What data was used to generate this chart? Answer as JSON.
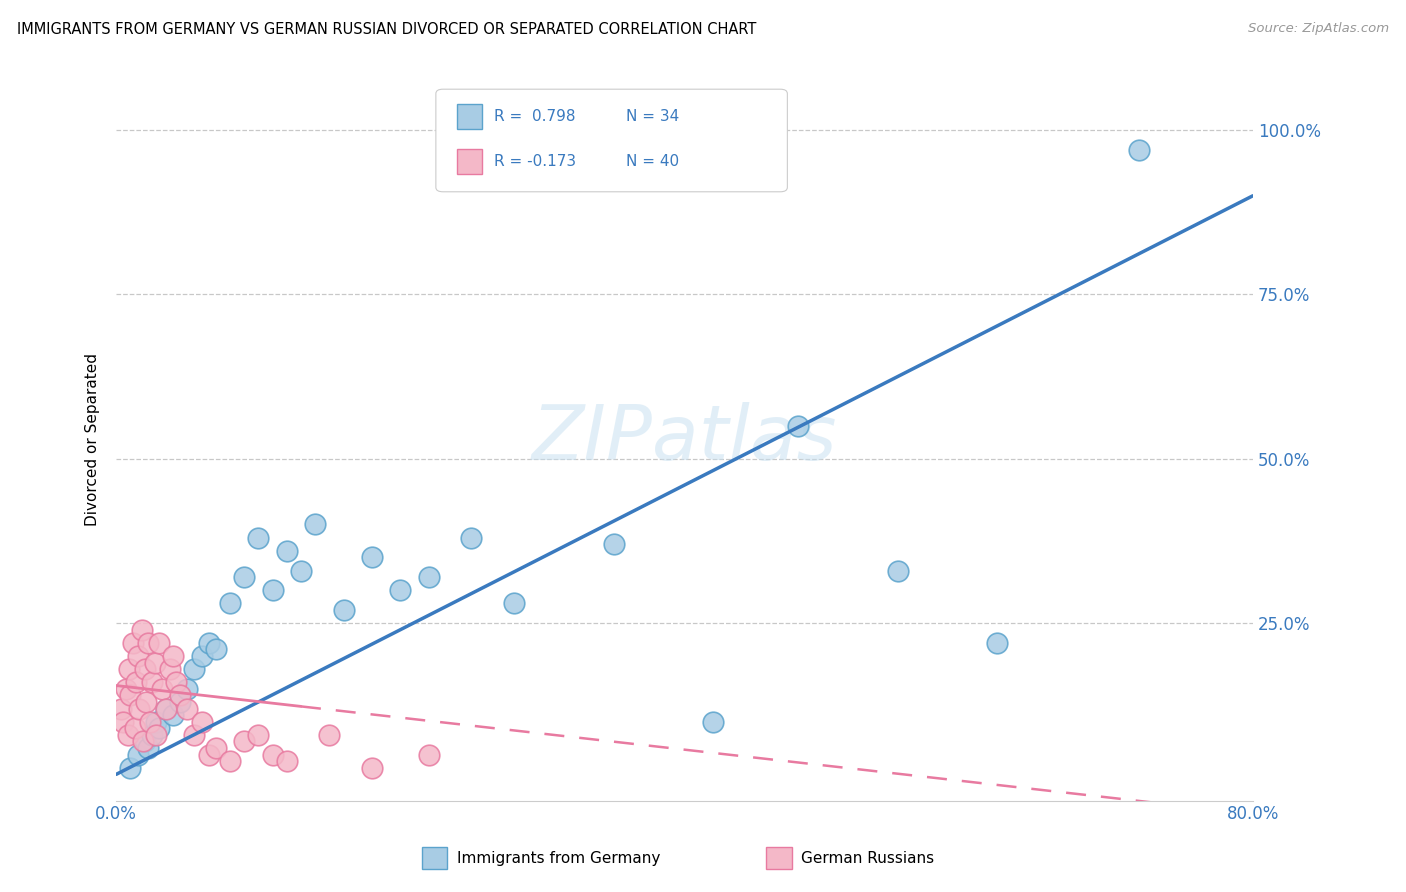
{
  "title": "IMMIGRANTS FROM GERMANY VS GERMAN RUSSIAN DIVORCED OR SEPARATED CORRELATION CHART",
  "source": "Source: ZipAtlas.com",
  "ylabel": "Divorced or Separated",
  "xlim": [
    0.0,
    0.8
  ],
  "ylim": [
    -0.02,
    1.08
  ],
  "x_tick_positions": [
    0.0,
    0.16,
    0.32,
    0.48,
    0.64,
    0.8
  ],
  "x_tick_labels": [
    "0.0%",
    "",
    "",
    "",
    "",
    "80.0%"
  ],
  "y_tick_vals_right": [
    0.25,
    0.5,
    0.75,
    1.0
  ],
  "y_tick_labels_right": [
    "25.0%",
    "50.0%",
    "75.0%",
    "100.0%"
  ],
  "R_blue": 0.798,
  "N_blue": 34,
  "R_pink": -0.173,
  "N_pink": 40,
  "color_blue": "#a8cce4",
  "color_pink": "#f4b8c8",
  "edge_blue": "#5ba3cc",
  "edge_pink": "#e87aa0",
  "line_color_blue": "#3a7abf",
  "line_color_pink": "#e87aa0",
  "watermark": "ZIPatlas",
  "blue_x": [
    0.01,
    0.015,
    0.02,
    0.022,
    0.025,
    0.028,
    0.03,
    0.035,
    0.04,
    0.045,
    0.05,
    0.055,
    0.06,
    0.065,
    0.07,
    0.08,
    0.09,
    0.1,
    0.11,
    0.12,
    0.13,
    0.14,
    0.16,
    0.18,
    0.2,
    0.22,
    0.25,
    0.28,
    0.35,
    0.42,
    0.48,
    0.55,
    0.62,
    0.72
  ],
  "blue_y": [
    0.03,
    0.05,
    0.07,
    0.06,
    0.08,
    0.1,
    0.09,
    0.12,
    0.11,
    0.13,
    0.15,
    0.18,
    0.2,
    0.22,
    0.21,
    0.28,
    0.32,
    0.38,
    0.3,
    0.36,
    0.33,
    0.4,
    0.27,
    0.35,
    0.3,
    0.32,
    0.38,
    0.28,
    0.37,
    0.1,
    0.55,
    0.33,
    0.22,
    0.97
  ],
  "pink_x": [
    0.003,
    0.005,
    0.007,
    0.008,
    0.009,
    0.01,
    0.012,
    0.013,
    0.014,
    0.015,
    0.016,
    0.018,
    0.019,
    0.02,
    0.021,
    0.022,
    0.024,
    0.025,
    0.027,
    0.028,
    0.03,
    0.032,
    0.035,
    0.038,
    0.04,
    0.042,
    0.045,
    0.05,
    0.055,
    0.06,
    0.065,
    0.07,
    0.08,
    0.09,
    0.1,
    0.11,
    0.12,
    0.15,
    0.18,
    0.22
  ],
  "pink_y": [
    0.12,
    0.1,
    0.15,
    0.08,
    0.18,
    0.14,
    0.22,
    0.09,
    0.16,
    0.2,
    0.12,
    0.24,
    0.07,
    0.18,
    0.13,
    0.22,
    0.1,
    0.16,
    0.19,
    0.08,
    0.22,
    0.15,
    0.12,
    0.18,
    0.2,
    0.16,
    0.14,
    0.12,
    0.08,
    0.1,
    0.05,
    0.06,
    0.04,
    0.07,
    0.08,
    0.05,
    0.04,
    0.08,
    0.03,
    0.05
  ],
  "blue_line_x0": 0.0,
  "blue_line_y0": 0.02,
  "blue_line_x1": 0.8,
  "blue_line_y1": 0.9,
  "pink_line_x0": 0.0,
  "pink_line_y0": 0.155,
  "pink_line_x1": 0.8,
  "pink_line_y1": -0.04
}
